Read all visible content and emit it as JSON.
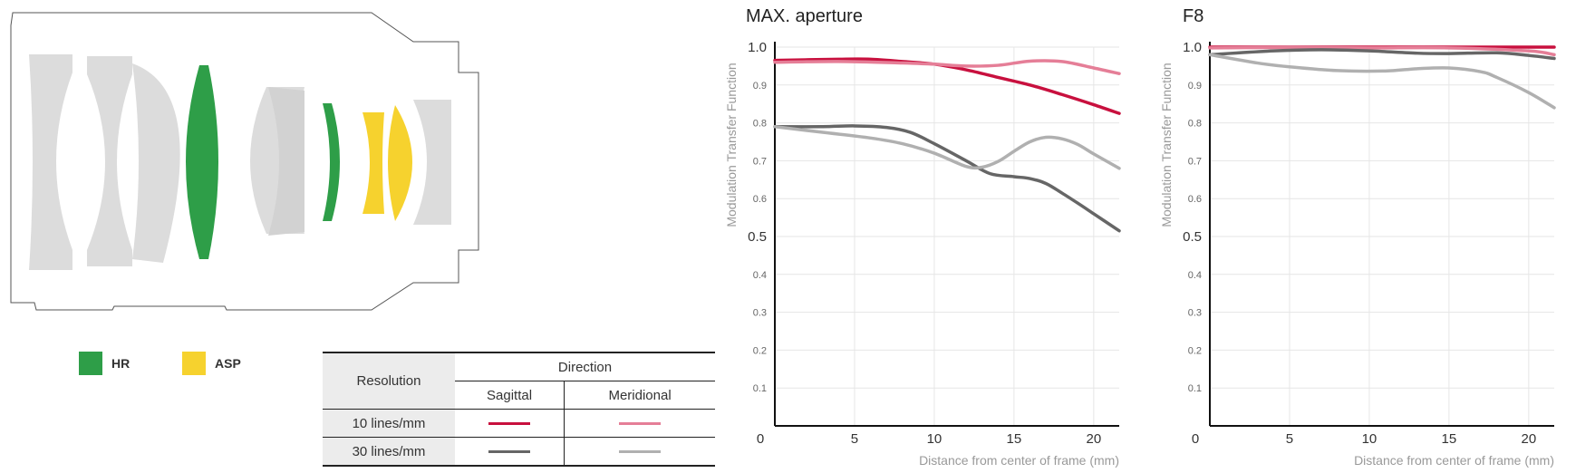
{
  "legend": [
    {
      "label": "HR",
      "color": "#2e9e48"
    },
    {
      "label": "ASP",
      "color": "#f6d22e"
    }
  ],
  "table": {
    "resolution_header": "Resolution",
    "direction_header": "Direction",
    "sagittal_header": "Sagittal",
    "meridional_header": "Meridional",
    "rows": [
      {
        "label": "10 lines/mm",
        "sagittal_color": "#c8103e",
        "meridional_color": "#e57e97"
      },
      {
        "label": "30 lines/mm",
        "sagittal_color": "#666666",
        "meridional_color": "#b0b0b0"
      }
    ]
  },
  "chart_data": [
    {
      "type": "line",
      "title": "MAX. aperture",
      "xlabel": "Distance from center of frame (mm)",
      "ylabel": "Modulation Transfer Function",
      "xlim": [
        0,
        21.6
      ],
      "ylim": [
        0,
        1.0
      ],
      "x_ticks": [
        "0",
        "5",
        "10",
        "15",
        "20"
      ],
      "y_ticks": [
        "0.1",
        "0.2",
        "0.3",
        "0.4",
        "0.5",
        "0.6",
        "0.7",
        "0.8",
        "0.9",
        "1.0"
      ],
      "grid": true,
      "series": [
        {
          "color": "#c8103e",
          "points": [
            [
              0,
              0.965
            ],
            [
              4,
              0.968
            ],
            [
              6,
              0.968
            ],
            [
              8,
              0.962
            ],
            [
              10,
              0.955
            ],
            [
              12,
              0.94
            ],
            [
              14,
              0.92
            ],
            [
              16,
              0.9
            ],
            [
              18,
              0.875
            ],
            [
              20,
              0.848
            ],
            [
              21.6,
              0.825
            ]
          ]
        },
        {
          "color": "#e57e97",
          "points": [
            [
              0,
              0.96
            ],
            [
              4,
              0.962
            ],
            [
              8,
              0.958
            ],
            [
              10,
              0.955
            ],
            [
              12,
              0.95
            ],
            [
              14,
              0.952
            ],
            [
              16,
              0.963
            ],
            [
              18,
              0.962
            ],
            [
              20,
              0.945
            ],
            [
              21.6,
              0.93
            ]
          ]
        },
        {
          "color": "#666666",
          "points": [
            [
              0,
              0.79
            ],
            [
              3,
              0.79
            ],
            [
              5,
              0.792
            ],
            [
              7,
              0.788
            ],
            [
              8.5,
              0.775
            ],
            [
              10,
              0.745
            ],
            [
              12,
              0.7
            ],
            [
              13.5,
              0.666
            ],
            [
              15,
              0.658
            ],
            [
              16,
              0.653
            ],
            [
              17,
              0.64
            ],
            [
              18,
              0.615
            ],
            [
              19,
              0.588
            ],
            [
              20,
              0.56
            ],
            [
              21.6,
              0.515
            ]
          ]
        },
        {
          "color": "#b0b0b0",
          "points": [
            [
              0,
              0.79
            ],
            [
              3,
              0.775
            ],
            [
              6,
              0.76
            ],
            [
              8,
              0.745
            ],
            [
              10,
              0.72
            ],
            [
              12,
              0.685
            ],
            [
              13,
              0.683
            ],
            [
              14,
              0.698
            ],
            [
              15,
              0.725
            ],
            [
              16,
              0.75
            ],
            [
              17,
              0.762
            ],
            [
              18,
              0.758
            ],
            [
              19,
              0.743
            ],
            [
              20,
              0.718
            ],
            [
              21.6,
              0.68
            ]
          ]
        }
      ]
    },
    {
      "type": "line",
      "title": "F8",
      "xlabel": "Distance from center of frame (mm)",
      "ylabel": "Modulation Transfer Function",
      "xlim": [
        0,
        21.6
      ],
      "ylim": [
        0,
        1.0
      ],
      "x_ticks": [
        "0",
        "5",
        "10",
        "15",
        "20"
      ],
      "y_ticks": [
        "0.1",
        "0.2",
        "0.3",
        "0.4",
        "0.5",
        "0.6",
        "0.7",
        "0.8",
        "0.9",
        "1.0"
      ],
      "grid": true,
      "series": [
        {
          "color": "#c8103e",
          "points": [
            [
              0,
              1.0
            ],
            [
              5,
              1.0
            ],
            [
              10,
              1.0
            ],
            [
              15,
              1.0
            ],
            [
              20,
              1.0
            ],
            [
              21.6,
              1.0
            ]
          ]
        },
        {
          "color": "#e57e97",
          "points": [
            [
              0,
              0.998
            ],
            [
              5,
              0.999
            ],
            [
              10,
              0.998
            ],
            [
              15,
              0.998
            ],
            [
              20,
              0.99
            ],
            [
              21.6,
              0.98
            ]
          ]
        },
        {
          "color": "#666666",
          "points": [
            [
              0,
              0.98
            ],
            [
              4,
              0.99
            ],
            [
              7,
              0.993
            ],
            [
              10,
              0.99
            ],
            [
              13,
              0.984
            ],
            [
              15,
              0.983
            ],
            [
              18,
              0.985
            ],
            [
              20,
              0.978
            ],
            [
              21.6,
              0.97
            ]
          ]
        },
        {
          "color": "#b0b0b0",
          "points": [
            [
              0,
              0.98
            ],
            [
              3,
              0.958
            ],
            [
              5,
              0.948
            ],
            [
              8,
              0.938
            ],
            [
              11,
              0.937
            ],
            [
              13,
              0.943
            ],
            [
              15,
              0.945
            ],
            [
              17,
              0.935
            ],
            [
              18,
              0.92
            ],
            [
              20,
              0.88
            ],
            [
              21.6,
              0.84
            ]
          ]
        }
      ]
    }
  ]
}
